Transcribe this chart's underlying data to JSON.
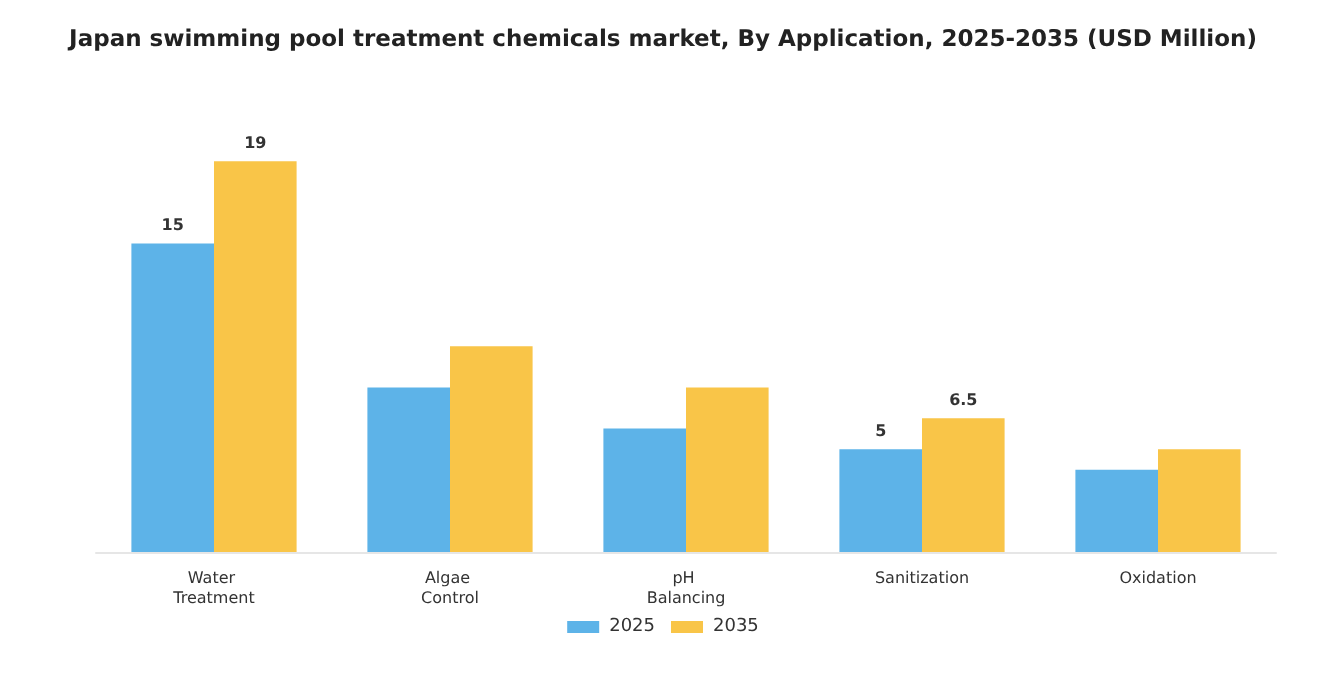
{
  "chart_data": {
    "type": "bar",
    "title": "Japan swimming pool treatment chemicals market, By Application, 2025-2035 (USD Million)",
    "categories": [
      "Water Treatment",
      "Algae Control",
      "pH Balancing",
      "Sanitization",
      "Oxidation"
    ],
    "series": [
      {
        "name": "2025",
        "color": "#5db3e8",
        "values": [
          15,
          8,
          6,
          5,
          4
        ],
        "value_labels": [
          "15",
          null,
          null,
          "5",
          null
        ]
      },
      {
        "name": "2035",
        "color": "#f9c548",
        "values": [
          19,
          10,
          8,
          6.5,
          5
        ],
        "value_labels": [
          "19",
          null,
          null,
          "6.5",
          null
        ]
      }
    ],
    "legend": "bottom"
  }
}
